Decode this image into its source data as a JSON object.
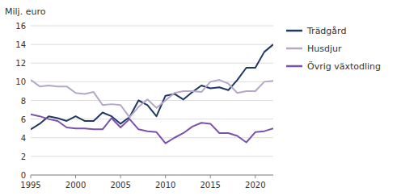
{
  "chart_data": {
    "type": "line",
    "ylabel": "Milj. euro",
    "x": [
      1995,
      1996,
      1997,
      1998,
      1999,
      2000,
      2001,
      2002,
      2003,
      2004,
      2005,
      2006,
      2007,
      2008,
      2009,
      2010,
      2011,
      2012,
      2013,
      2014,
      2015,
      2016,
      2017,
      2018,
      2019,
      2020,
      2021,
      2022
    ],
    "series": [
      {
        "name": "Trädgård",
        "color": "#1F3864",
        "values": [
          4.9,
          5.5,
          6.3,
          6.1,
          5.8,
          6.3,
          5.8,
          5.8,
          6.7,
          6.3,
          5.5,
          6.2,
          8.0,
          7.5,
          6.3,
          8.5,
          8.7,
          8.1,
          8.9,
          9.6,
          9.3,
          9.4,
          9.1,
          10.2,
          11.5,
          11.5,
          13.2,
          14.0
        ]
      },
      {
        "name": "Husdjur",
        "color": "#B4A7C8",
        "values": [
          10.2,
          9.5,
          9.6,
          9.5,
          9.5,
          8.8,
          8.7,
          8.9,
          7.5,
          7.6,
          7.5,
          6.2,
          7.3,
          8.1,
          7.2,
          8.0,
          8.8,
          9.0,
          9.0,
          8.9,
          10.0,
          10.2,
          9.8,
          8.8,
          9.0,
          9.0,
          10.0,
          10.1
        ]
      },
      {
        "name": "Övrig växtodling",
        "color": "#7B52AB",
        "values": [
          6.5,
          6.3,
          6.0,
          5.8,
          5.1,
          5.0,
          5.0,
          4.9,
          4.9,
          6.1,
          5.1,
          6.0,
          4.9,
          4.7,
          4.6,
          3.4,
          4.0,
          4.5,
          5.2,
          5.6,
          5.5,
          4.5,
          4.5,
          4.2,
          3.5,
          4.6,
          4.7,
          5.0
        ]
      }
    ],
    "xlim": [
      1995,
      2022
    ],
    "xticks": [
      1995,
      2000,
      2005,
      2010,
      2015,
      2020
    ],
    "ylim": [
      0,
      16
    ],
    "yticks": [
      0,
      2,
      4,
      6,
      8,
      10,
      12,
      14,
      16
    ],
    "grid": true,
    "legend": "right"
  }
}
